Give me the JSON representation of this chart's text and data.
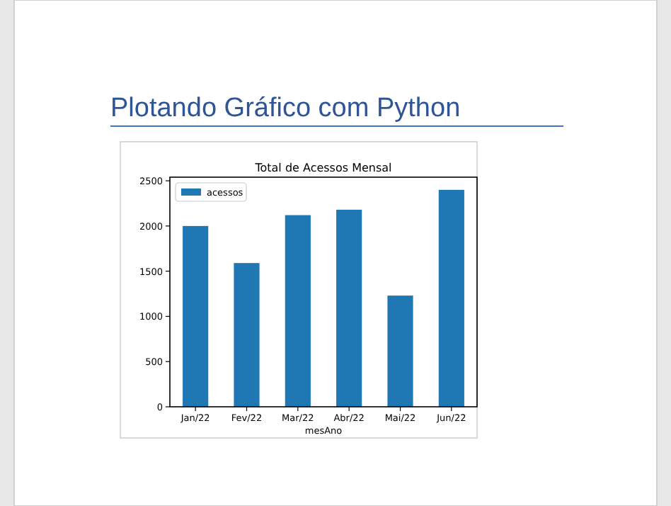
{
  "chart_data": {
    "type": "bar",
    "title": "Total de Acessos Mensal",
    "xlabel": "mesAno",
    "annotations": [
      "Plotando Gráfico com Python"
    ],
    "categories": [
      "Jan/22",
      "Fev/22",
      "Mar/22",
      "Abr/22",
      "Mai/22",
      "Jun/22"
    ],
    "series": [
      {
        "name": "acessos",
        "color": "#1f77b4",
        "values": [
          2000,
          1590,
          2120,
          2180,
          1230,
          2400
        ]
      }
    ],
    "ylim": [
      0,
      2540
    ],
    "yticks": [
      0,
      500,
      1000,
      1500,
      2000,
      2500
    ],
    "legend": "top left"
  }
}
